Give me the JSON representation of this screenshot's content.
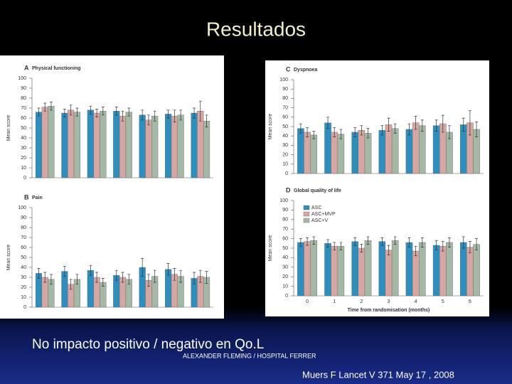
{
  "slide": {
    "title": "Resultados",
    "caption": "No impacto positivo / negativo en Qo.L",
    "credit": "ALEXANDER FLEMING / HOSPITAL FERRER",
    "citation": "Muers F Lancet V 371 May 17 , 2008"
  },
  "chart_data": [
    {
      "type": "bar",
      "panel": "A",
      "title": "Physical functioning",
      "ylabel": "Mean score",
      "ylim": [
        0,
        100
      ],
      "yticks": [
        0,
        10,
        20,
        30,
        40,
        50,
        60,
        70,
        80,
        90,
        100
      ],
      "categories": [
        null,
        null,
        null,
        null,
        null,
        null,
        null
      ],
      "series": [
        {
          "color": "#2b8fbf",
          "values": [
            66,
            65,
            68,
            67,
            63,
            64,
            65
          ],
          "errors": [
            4,
            4,
            4,
            4,
            5,
            4,
            5
          ]
        },
        {
          "color": "#d8a6a2",
          "values": [
            71,
            68,
            65,
            62,
            58,
            62,
            67
          ],
          "errors": [
            4,
            5,
            4,
            5,
            5,
            6,
            10
          ]
        },
        {
          "color": "#a3b8a5",
          "values": [
            72,
            66,
            67,
            66,
            62,
            63,
            57
          ],
          "errors": [
            4,
            4,
            4,
            4,
            5,
            5,
            6
          ]
        }
      ]
    },
    {
      "type": "bar",
      "panel": "B",
      "title": "Pain",
      "ylabel": "Mean score",
      "ylim": [
        0,
        100
      ],
      "yticks": [
        0,
        10,
        20,
        30,
        40,
        50,
        60,
        70,
        80,
        90,
        100
      ],
      "categories": [
        null,
        null,
        null,
        null,
        null,
        null,
        null
      ],
      "series": [
        {
          "color": "#2b8fbf",
          "values": [
            34,
            36,
            37,
            32,
            40,
            38,
            29
          ],
          "errors": [
            5,
            5,
            5,
            5,
            9,
            6,
            6
          ]
        },
        {
          "color": "#d8a6a2",
          "values": [
            30,
            23,
            30,
            30,
            27,
            33,
            31
          ],
          "errors": [
            5,
            5,
            5,
            5,
            6,
            6,
            6
          ]
        },
        {
          "color": "#a3b8a5",
          "values": [
            28,
            28,
            25,
            28,
            31,
            31,
            30
          ],
          "errors": [
            5,
            5,
            4,
            5,
            6,
            6,
            6
          ]
        }
      ]
    },
    {
      "type": "bar",
      "panel": "C",
      "title": "Dyspnoea",
      "ylabel": "Mean score",
      "ylim": [
        0,
        100
      ],
      "yticks": [
        0,
        10,
        20,
        30,
        40,
        50,
        60,
        70,
        80,
        90,
        100
      ],
      "categories": [
        null,
        null,
        null,
        null,
        null,
        null,
        null
      ],
      "series": [
        {
          "color": "#2b8fbf",
          "values": [
            48,
            54,
            44,
            46,
            47,
            51,
            52
          ],
          "errors": [
            5,
            6,
            5,
            5,
            6,
            6,
            7
          ]
        },
        {
          "color": "#d8a6a2",
          "values": [
            44,
            44,
            46,
            52,
            54,
            53,
            54
          ],
          "errors": [
            5,
            5,
            5,
            7,
            7,
            9,
            13
          ]
        },
        {
          "color": "#a3b8a5",
          "values": [
            41,
            42,
            43,
            48,
            51,
            44,
            47
          ],
          "errors": [
            4,
            5,
            5,
            5,
            6,
            7,
            8
          ]
        }
      ]
    },
    {
      "type": "bar",
      "panel": "D",
      "title": "Global quality of life",
      "ylabel": "Mean score",
      "xlabel": "Time from randomisation (months)",
      "ylim": [
        0,
        100
      ],
      "yticks": [
        0,
        10,
        20,
        30,
        40,
        50,
        60,
        70,
        80,
        90,
        100
      ],
      "legend": "upper left",
      "categories": [
        "0",
        "1",
        "2",
        "3",
        "4",
        "5",
        "6"
      ],
      "series": [
        {
          "name": "ASC",
          "color": "#2b8fbf",
          "values": [
            56,
            55,
            57,
            57,
            56,
            53,
            56
          ],
          "errors": [
            4,
            4,
            4,
            4,
            5,
            5,
            6
          ]
        },
        {
          "name": "ASC+MVP",
          "color": "#d8a6a2",
          "values": [
            57,
            52,
            50,
            48,
            47,
            52,
            51
          ],
          "errors": [
            4,
            4,
            4,
            5,
            5,
            5,
            6
          ]
        },
        {
          "name": "ASC+V",
          "color": "#a3b8a5",
          "values": [
            58,
            52,
            58,
            58,
            56,
            56,
            54
          ],
          "errors": [
            4,
            4,
            4,
            4,
            5,
            5,
            6
          ]
        }
      ]
    }
  ]
}
